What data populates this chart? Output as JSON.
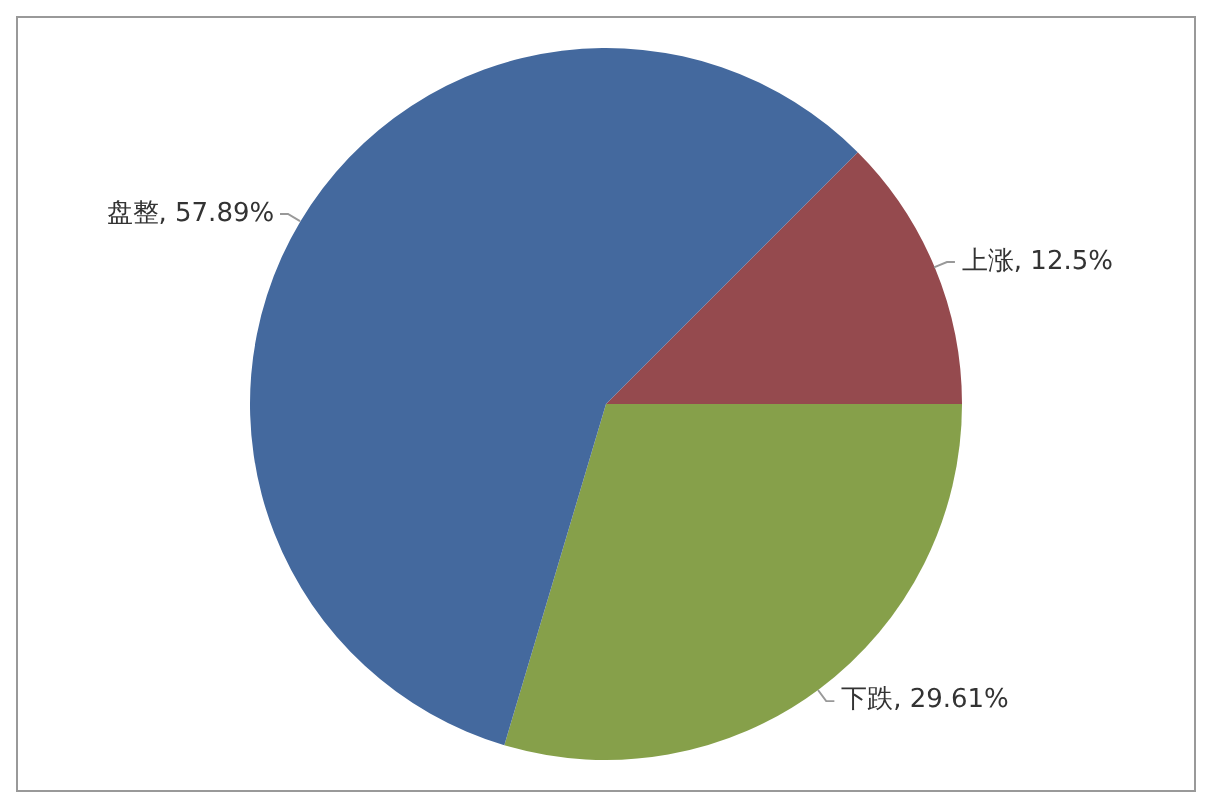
{
  "chart_data": {
    "type": "pie",
    "categories": [
      "上涨",
      "下跌",
      "盘整"
    ],
    "values": [
      12.5,
      29.61,
      57.89
    ],
    "value_labels": [
      ", 12.5%",
      ", 29.61%",
      ", 57.89%"
    ],
    "colors": [
      "#954a4e",
      "#86a04a",
      "#44699e"
    ],
    "legend": false
  }
}
